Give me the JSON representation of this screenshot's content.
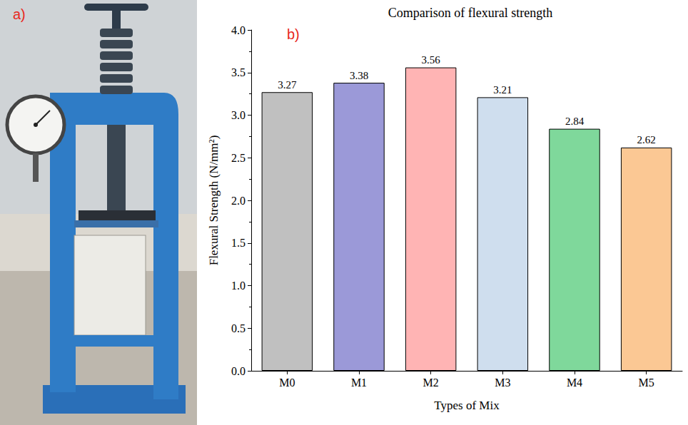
{
  "chart_data": {
    "type": "bar",
    "title": "Comparison of flexural strength",
    "x_label": "Types of Mix",
    "y_label": "Flexural Strength (N/mm²)",
    "annotations": [
      "a)",
      "b)"
    ],
    "categories": [
      "M0",
      "M1",
      "M2",
      "M3",
      "M4",
      "M5"
    ],
    "values": [
      3.27,
      3.38,
      3.56,
      3.21,
      2.84,
      2.62
    ],
    "colors": [
      "#c0c0c0",
      "#9b99d8",
      "#ffb4b4",
      "#cfdeee",
      "#7fd89b",
      "#fbc894"
    ],
    "ylim": [
      0,
      4
    ],
    "yticks": [
      {
        "value": 0,
        "label": "0.0"
      },
      0.5,
      {
        "value": 1,
        "label": "1.0"
      },
      1.5,
      {
        "value": 2,
        "label": "2.0"
      },
      2.5,
      {
        "value": 3,
        "label": "3.0"
      },
      3.5,
      {
        "value": 4,
        "label": "4.0"
      }
    ],
    "data_labels": true,
    "grid": false
  }
}
